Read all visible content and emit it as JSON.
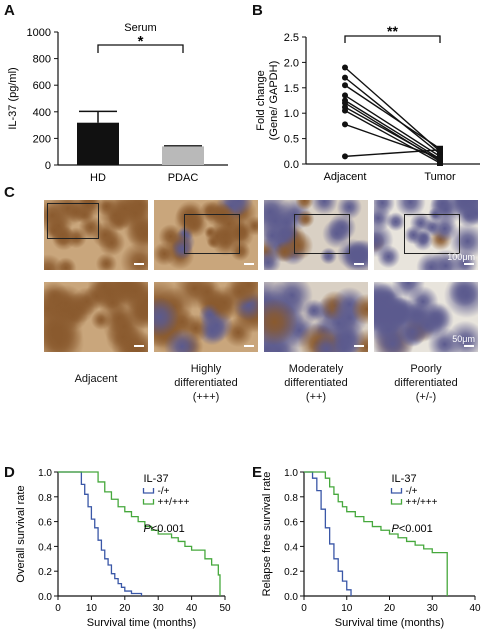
{
  "figure": {
    "panels": {
      "A": {
        "letter": "A"
      },
      "B": {
        "letter": "B"
      },
      "C": {
        "letter": "C"
      },
      "D": {
        "letter": "D"
      },
      "E": {
        "letter": "E"
      }
    },
    "colors": {
      "hd_bar": "#111111",
      "pdac_bar": "#b9b9b9",
      "low_group": "#3a57a7",
      "high_group": "#46a83c",
      "stain_brown": "#8a5a2e",
      "stain_blue": "#5b5a8e"
    },
    "panel_c": {
      "scale_top": "100μm",
      "scale_bottom": "50μm",
      "captions": [
        {
          "lines": [
            "Adjacent"
          ]
        },
        {
          "lines": [
            "Highly",
            "differentiated",
            "(+++)"
          ]
        },
        {
          "lines": [
            "Moderately",
            "differentiated",
            "(++)"
          ]
        },
        {
          "lines": [
            "Poorly",
            "differentiated",
            "(+/-)"
          ]
        }
      ]
    }
  },
  "chart_data": [
    {
      "panel": "A",
      "type": "bar",
      "title": "Serum",
      "ylabel": "IL-37 (pg/ml)",
      "xlabel": "",
      "categories": [
        "HD",
        "PDAC"
      ],
      "values": [
        318,
        140
      ],
      "errors": [
        85,
        5
      ],
      "ylim": [
        0,
        1000
      ],
      "yticks": [
        0,
        200,
        400,
        600,
        800,
        1000
      ],
      "significance": "*"
    },
    {
      "panel": "B",
      "type": "line",
      "ylabel": "Fold change (Gene/ GAPDH)",
      "xlabel": "",
      "categories": [
        "Adjacent",
        "Tumor"
      ],
      "ylim": [
        0,
        2.5
      ],
      "yticks": [
        "0.0",
        "0.5",
        "1.0",
        "1.5",
        "2.0",
        "2.5"
      ],
      "significance": "**",
      "pairs": [
        [
          1.9,
          0.25
        ],
        [
          1.7,
          0.2
        ],
        [
          1.55,
          0.3
        ],
        [
          1.35,
          0.15
        ],
        [
          1.25,
          0.1
        ],
        [
          1.2,
          0.05
        ],
        [
          1.12,
          0.08
        ],
        [
          1.05,
          0.02
        ],
        [
          0.78,
          0.12
        ],
        [
          0.15,
          0.28
        ]
      ]
    },
    {
      "panel": "D",
      "type": "line",
      "ylabel": "Overall survival rate",
      "xlabel": "Survival time (months)",
      "legend_title": "IL-37",
      "pvalue": "P<0.001",
      "xlim": [
        0,
        50
      ],
      "xticks": [
        0,
        10,
        20,
        30,
        40,
        50
      ],
      "ylim": [
        0,
        1.0
      ],
      "yticks": [
        "0.0",
        "0.2",
        "0.4",
        "0.6",
        "0.8",
        "1.0"
      ],
      "series": [
        {
          "name": "-/+",
          "x": [
            0,
            6,
            7,
            8,
            9,
            10,
            11,
            12,
            13,
            14,
            15,
            16,
            17,
            18,
            19,
            20,
            22,
            25
          ],
          "y": [
            1.0,
            1.0,
            0.9,
            0.82,
            0.72,
            0.62,
            0.55,
            0.45,
            0.37,
            0.3,
            0.25,
            0.18,
            0.14,
            0.1,
            0.07,
            0.04,
            0.02,
            0.0
          ]
        },
        {
          "name": "++/+++",
          "x": [
            0,
            10,
            12,
            14,
            16,
            18,
            20,
            22,
            24,
            26,
            28,
            30,
            34,
            36,
            38,
            40,
            44,
            46,
            48,
            48.5
          ],
          "y": [
            1.0,
            1.0,
            0.92,
            0.84,
            0.78,
            0.72,
            0.68,
            0.64,
            0.6,
            0.56,
            0.53,
            0.5,
            0.47,
            0.44,
            0.4,
            0.37,
            0.3,
            0.25,
            0.17,
            0.0
          ]
        }
      ]
    },
    {
      "panel": "E",
      "type": "line",
      "ylabel": "Relapse free survival rate",
      "xlabel": "Survival time (months)",
      "legend_title": "IL-37",
      "pvalue": "P<0.001",
      "xlim": [
        0,
        40
      ],
      "xticks": [
        0,
        10,
        20,
        30,
        40
      ],
      "ylim": [
        0,
        1.0
      ],
      "yticks": [
        "0.0",
        "0.2",
        "0.4",
        "0.6",
        "0.8",
        "1.0"
      ],
      "series": [
        {
          "name": "-/+",
          "x": [
            0,
            2,
            3,
            4,
            5,
            6,
            7,
            8,
            9,
            10,
            11
          ],
          "y": [
            1.0,
            0.95,
            0.85,
            0.7,
            0.55,
            0.42,
            0.3,
            0.2,
            0.12,
            0.05,
            0.0
          ]
        },
        {
          "name": "++/+++",
          "x": [
            0,
            4,
            5,
            6,
            7,
            8,
            9,
            10,
            12,
            14,
            16,
            18,
            20,
            22,
            24,
            26,
            28,
            30,
            33,
            33.5
          ],
          "y": [
            1.0,
            1.0,
            0.95,
            0.88,
            0.82,
            0.76,
            0.72,
            0.68,
            0.64,
            0.6,
            0.56,
            0.53,
            0.5,
            0.47,
            0.44,
            0.41,
            0.38,
            0.35,
            0.35,
            0.0
          ]
        }
      ]
    }
  ]
}
